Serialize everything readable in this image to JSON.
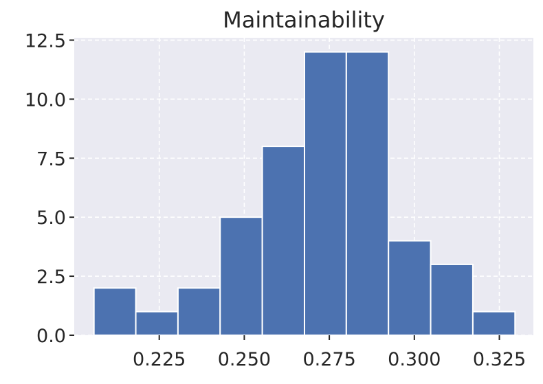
{
  "chart_data": {
    "type": "bar",
    "title": "Maintainability",
    "xlabel": "",
    "ylabel": "",
    "bins": [
      {
        "start": 0.2058,
        "end": 0.2181,
        "count": 2
      },
      {
        "start": 0.2181,
        "end": 0.2305,
        "count": 1
      },
      {
        "start": 0.2305,
        "end": 0.2429,
        "count": 2
      },
      {
        "start": 0.2429,
        "end": 0.2553,
        "count": 5
      },
      {
        "start": 0.2553,
        "end": 0.2677,
        "count": 8
      },
      {
        "start": 0.2677,
        "end": 0.28,
        "count": 12
      },
      {
        "start": 0.28,
        "end": 0.2924,
        "count": 12
      },
      {
        "start": 0.2924,
        "end": 0.3048,
        "count": 4
      },
      {
        "start": 0.3048,
        "end": 0.3172,
        "count": 3
      },
      {
        "start": 0.3172,
        "end": 0.3296,
        "count": 1
      }
    ],
    "xlim": [
      0.2,
      0.335
    ],
    "ylim": [
      0,
      12.6
    ],
    "xticks": [
      0.225,
      0.25,
      0.275,
      0.3,
      0.325
    ],
    "xtick_labels": [
      "0.225",
      "0.250",
      "0.275",
      "0.300",
      "0.325"
    ],
    "yticks": [
      0,
      2.5,
      5,
      7.5,
      10,
      12.5
    ],
    "ytick_labels": [
      "0.0",
      "2.5",
      "5.0",
      "7.5",
      "10.0",
      "12.5"
    ],
    "grid": true,
    "colors": {
      "background": "#eaeaf2",
      "bar": "#4c72b0",
      "bar_edge": "#ffffff",
      "grid": "#ffffff",
      "text": "#262626"
    }
  }
}
